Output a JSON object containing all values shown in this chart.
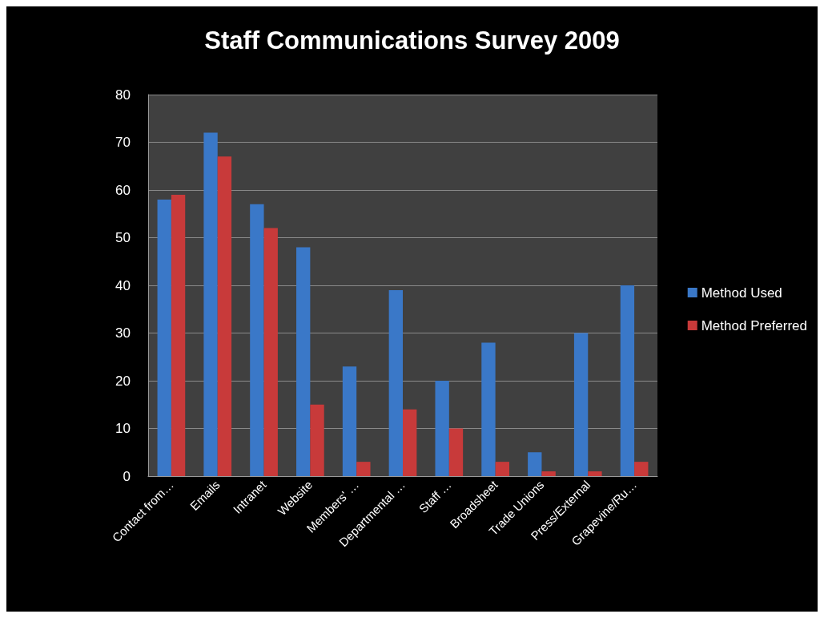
{
  "chart_data": {
    "type": "bar",
    "title": "Staff Communications Survey 2009",
    "categories": [
      "Contact from…",
      "Emails",
      "Intranet",
      "Website",
      "Members' …",
      "Departmental …",
      "Staff …",
      "Broadsheet",
      "Trade Unions",
      "Press/External",
      "Grapevine/Ru…"
    ],
    "series": [
      {
        "name": "Method Used",
        "color": "#3a78c8",
        "values": [
          58,
          72,
          57,
          48,
          23,
          39,
          20,
          28,
          5,
          30,
          40
        ]
      },
      {
        "name": "Method Preferred",
        "color": "#c83a3a",
        "values": [
          59,
          67,
          52,
          15,
          3,
          14,
          10,
          3,
          1,
          1,
          3
        ]
      }
    ],
    "ylim": [
      0,
      80
    ],
    "yticks": [
      0,
      10,
      20,
      30,
      40,
      50,
      60,
      70,
      80
    ],
    "grid": "y",
    "legend": "right"
  }
}
